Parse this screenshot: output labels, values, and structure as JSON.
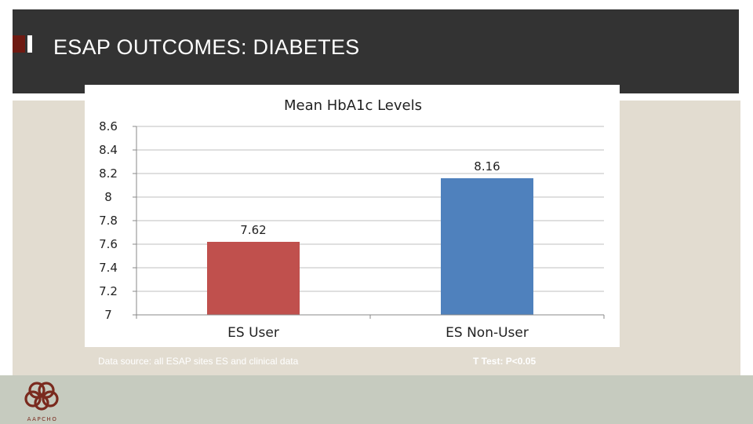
{
  "slide": {
    "title": "ESAP OUTCOMES: DIABETES",
    "data_source": "Data source:  all ESAP sites ES and clinical data",
    "ttest": "T Test: P<0.05",
    "logo_text": "AAPCHO"
  },
  "colors": {
    "header": "#333333",
    "accent": "#6e1a12",
    "panel": "#e2dcd0",
    "footer": "#c6cbbf",
    "logo": "#7a2a1e"
  },
  "chart_data": {
    "type": "bar",
    "title": "Mean HbA1c Levels",
    "categories": [
      "ES User",
      "ES Non-User"
    ],
    "values": [
      7.62,
      8.16
    ],
    "data_labels": [
      "7.62",
      "8.16"
    ],
    "bar_colors": [
      "#c0504d",
      "#4f81bd"
    ],
    "ylim": [
      7,
      8.6
    ],
    "yticks": [
      7,
      7.2,
      7.4,
      7.6,
      7.8,
      8,
      8.2,
      8.4,
      8.6
    ],
    "ytick_labels": [
      "7",
      "7.2",
      "7.4",
      "7.6",
      "7.8",
      "8",
      "8.2",
      "8.4",
      "8.6"
    ],
    "grid": true,
    "legend": "none"
  }
}
